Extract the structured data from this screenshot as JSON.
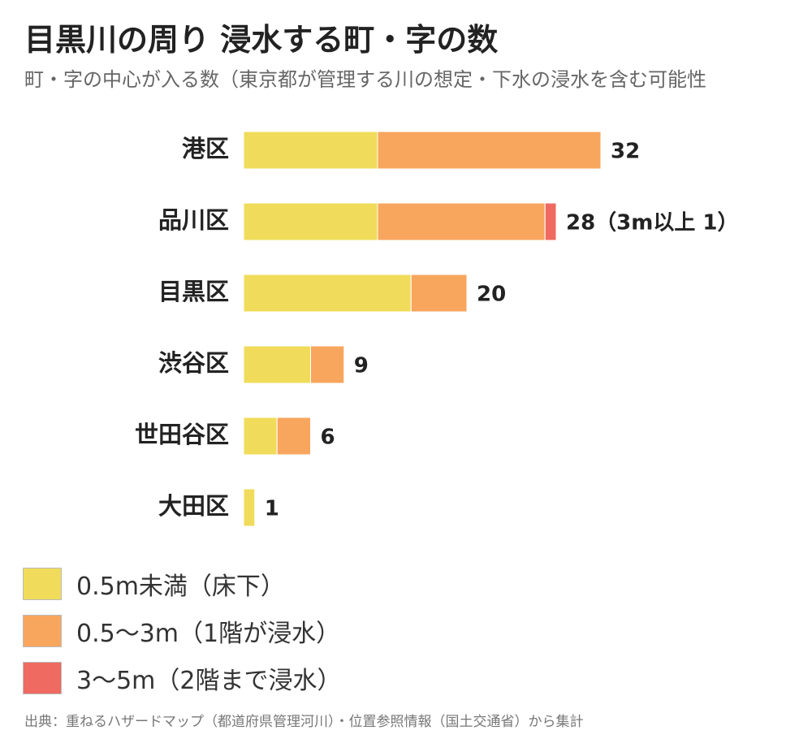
{
  "title": "目黒川の周り 浸水する町・字の数",
  "subtitle": "町・字の中心が入る数（東京都が管理する川の想定・下水の浸水を含む可能性",
  "source": "出典：重ねるハザードマップ（都道府県管理河川）・位置参照情報（国土交通省）から集計",
  "chart_data": {
    "type": "bar",
    "orientation": "horizontal",
    "stacked": true,
    "categories": [
      "港区",
      "品川区",
      "目黒区",
      "渋谷区",
      "世田谷区",
      "大田区"
    ],
    "series": [
      {
        "name": "0.5m未満（床下）",
        "color": "#f0dc5a",
        "values": [
          12,
          12,
          15,
          6,
          3,
          1
        ]
      },
      {
        "name": "0.5～3m（1階が浸水）",
        "color": "#f8a55e",
        "values": [
          20,
          15,
          5,
          3,
          3,
          0
        ]
      },
      {
        "name": "3～5m（2階まで浸水）",
        "color": "#ef6a60",
        "values": [
          0,
          1,
          0,
          0,
          0,
          0
        ]
      }
    ],
    "totals": [
      32,
      28,
      20,
      9,
      6,
      1
    ],
    "total_labels": [
      "32",
      "28（3m以上 1）",
      "20",
      "9",
      "6",
      "1"
    ],
    "xlim": [
      0,
      32
    ],
    "grid": false,
    "legend": "bottom-left"
  }
}
